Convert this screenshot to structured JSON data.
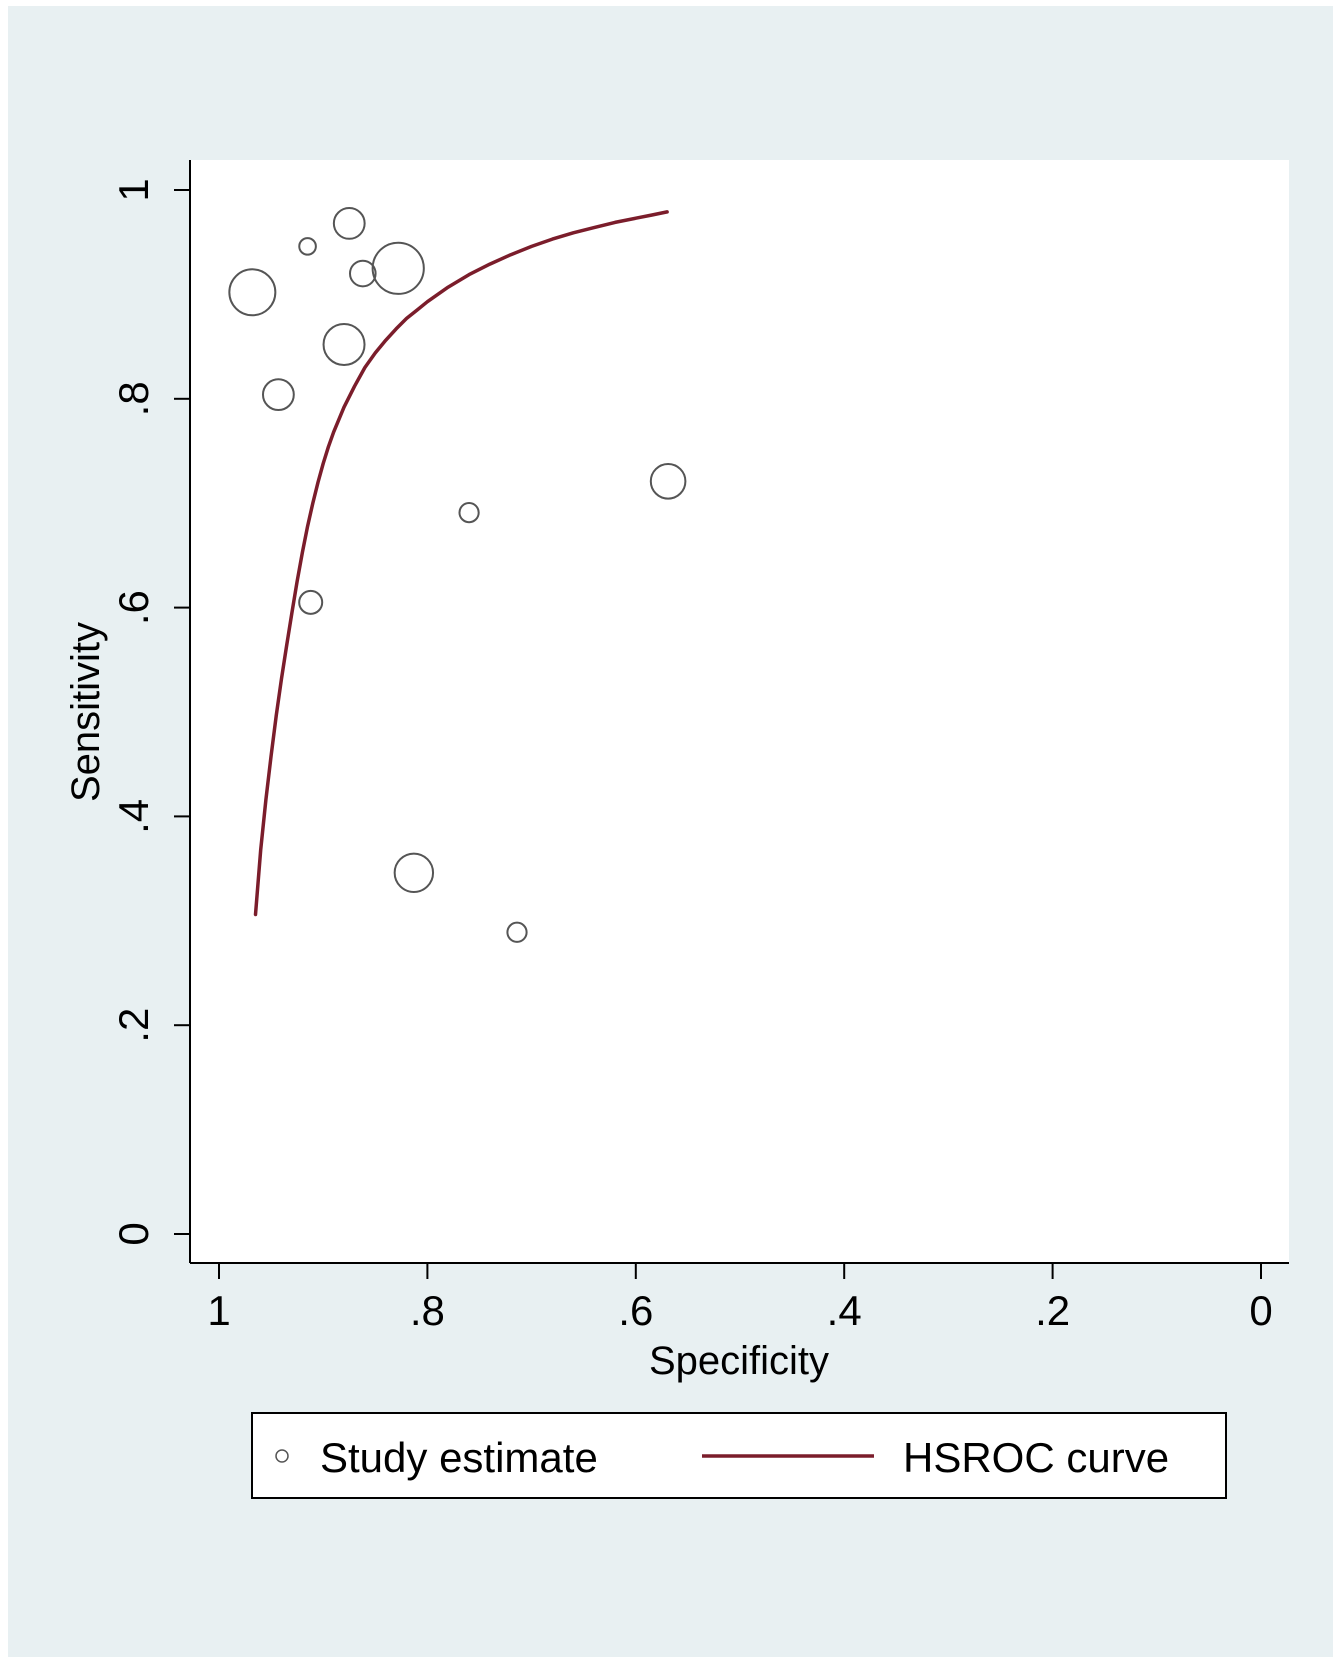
{
  "chart_data": {
    "type": "scatter",
    "title": "",
    "xlabel": "Specificity",
    "ylabel": "Sensitivity",
    "x_reversed": true,
    "xlim": [
      1,
      0
    ],
    "ylim": [
      0,
      1
    ],
    "x_ticks": [
      1,
      0.8,
      0.6,
      0.4,
      0.2,
      0
    ],
    "x_tick_labels": [
      "1",
      ".8",
      ".6",
      ".4",
      ".2",
      "0"
    ],
    "y_ticks": [
      0,
      0.2,
      0.4,
      0.6,
      0.8,
      1
    ],
    "y_tick_labels": [
      "0",
      ".2",
      ".4",
      ".6",
      ".8",
      "1"
    ],
    "grid": false,
    "legend_position": "bottom",
    "colors": {
      "background": "#e8f0f2",
      "plot_area": "#ffffff",
      "marker": "#555555",
      "curve": "#7b1d2b"
    },
    "series": [
      {
        "name": "Study estimate",
        "kind": "scatter",
        "marker": "hollow-circle",
        "points": [
          {
            "x": 0.968,
            "y": 0.902,
            "size": 3.6
          },
          {
            "x": 0.943,
            "y": 0.804,
            "size": 2.4
          },
          {
            "x": 0.915,
            "y": 0.946,
            "size": 1.3
          },
          {
            "x": 0.912,
            "y": 0.605,
            "size": 1.8
          },
          {
            "x": 0.875,
            "y": 0.968,
            "size": 2.4
          },
          {
            "x": 0.88,
            "y": 0.852,
            "size": 3.2
          },
          {
            "x": 0.862,
            "y": 0.92,
            "size": 2.0
          },
          {
            "x": 0.828,
            "y": 0.925,
            "size": 4.0
          },
          {
            "x": 0.76,
            "y": 0.691,
            "size": 1.5
          },
          {
            "x": 0.813,
            "y": 0.346,
            "size": 3.0
          },
          {
            "x": 0.714,
            "y": 0.289,
            "size": 1.5
          },
          {
            "x": 0.569,
            "y": 0.721,
            "size": 2.7
          }
        ]
      },
      {
        "name": "HSROC curve",
        "kind": "line",
        "x": [
          0.965,
          0.96,
          0.955,
          0.95,
          0.945,
          0.94,
          0.935,
          0.93,
          0.925,
          0.92,
          0.915,
          0.91,
          0.905,
          0.9,
          0.895,
          0.89,
          0.88,
          0.87,
          0.86,
          0.85,
          0.84,
          0.83,
          0.82,
          0.81,
          0.8,
          0.78,
          0.76,
          0.74,
          0.72,
          0.7,
          0.68,
          0.66,
          0.64,
          0.62,
          0.6,
          0.585,
          0.57
        ],
        "y": [
          0.306,
          0.368,
          0.416,
          0.458,
          0.497,
          0.532,
          0.564,
          0.595,
          0.625,
          0.653,
          0.678,
          0.7,
          0.72,
          0.738,
          0.754,
          0.768,
          0.792,
          0.812,
          0.83,
          0.844,
          0.856,
          0.867,
          0.877,
          0.885,
          0.893,
          0.907,
          0.919,
          0.929,
          0.938,
          0.946,
          0.953,
          0.959,
          0.964,
          0.969,
          0.973,
          0.976,
          0.979
        ]
      }
    ]
  }
}
